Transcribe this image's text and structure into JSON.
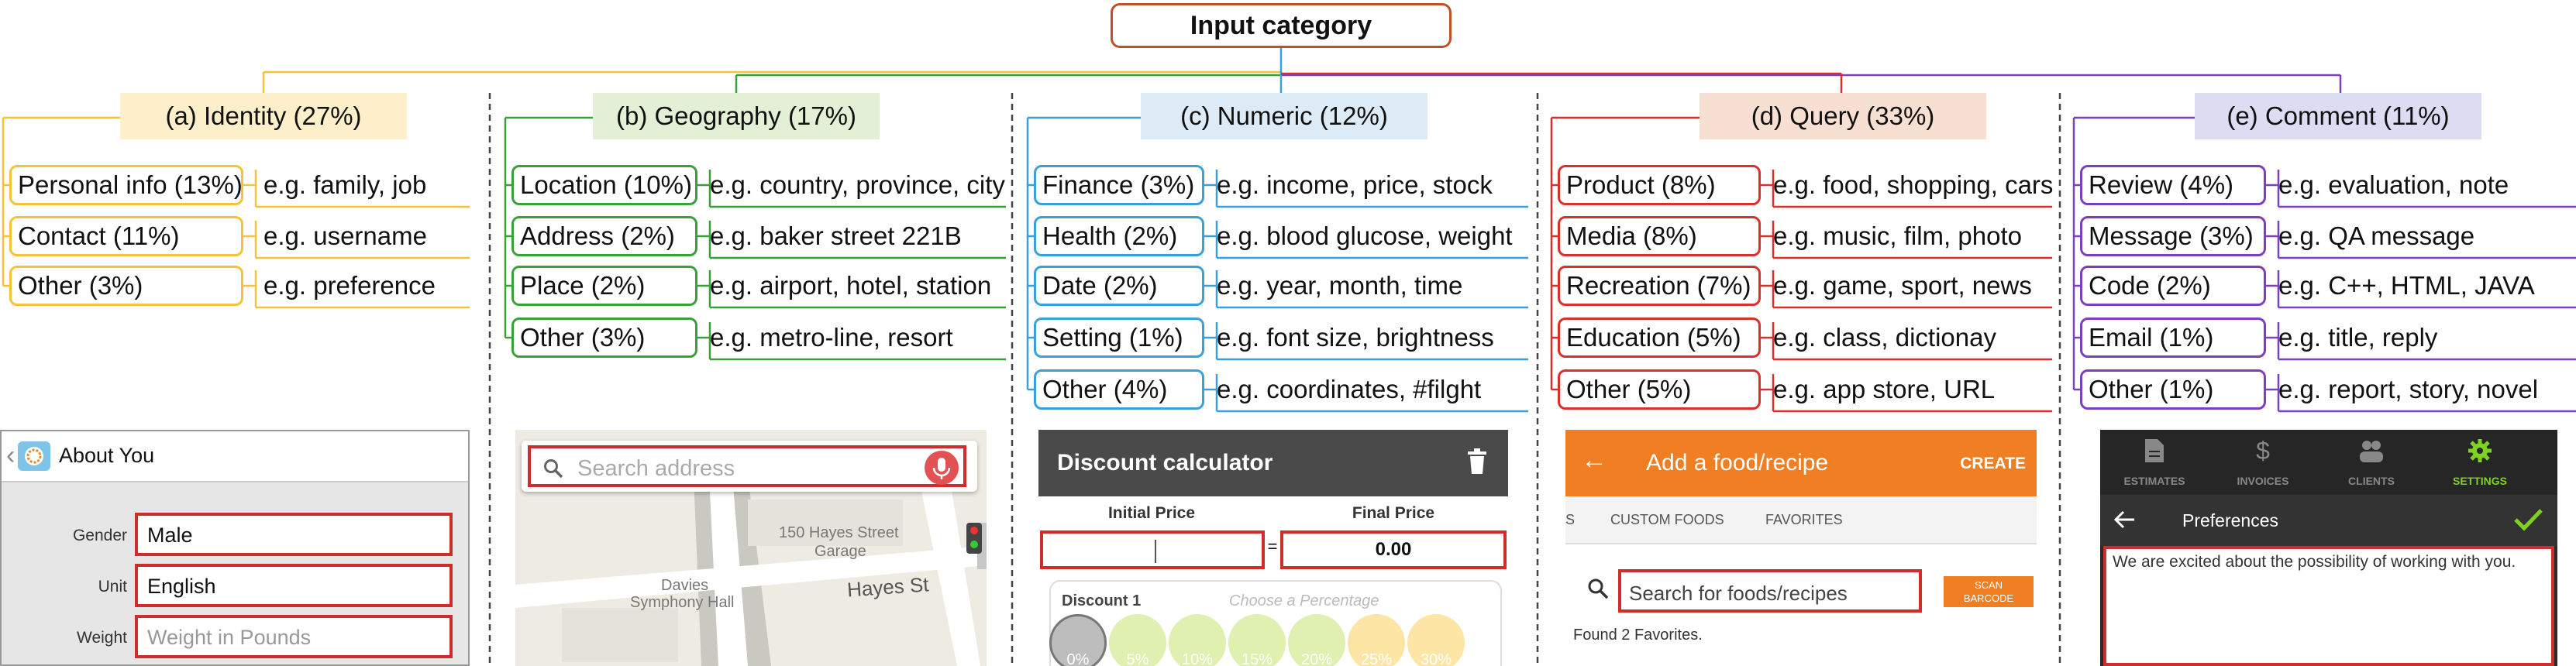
{
  "root_label": "Input category",
  "colors": {
    "identity": "#f5c338",
    "geography": "#3aa13a",
    "numeric": "#3aa0dc",
    "query": "#d8302c",
    "comment": "#7b3fbf",
    "root": "#c0502a",
    "highlight": "#d12c2c"
  },
  "categories": [
    {
      "title": "(a) Identity (27%)",
      "items": [
        {
          "label": "Personal info (13%)",
          "example": "e.g. family, job"
        },
        {
          "label": "Contact (11%)",
          "example": "e.g. username"
        },
        {
          "label": "Other (3%)",
          "example": "e.g. preference"
        }
      ]
    },
    {
      "title": "(b) Geography (17%)",
      "items": [
        {
          "label": "Location (10%)",
          "example": "e.g. country, province, city"
        },
        {
          "label": "Address (2%)",
          "example": "e.g. baker street 221B"
        },
        {
          "label": "Place (2%)",
          "example": "e.g. airport, hotel, station"
        },
        {
          "label": "Other (3%)",
          "example": "e.g. metro-line, resort"
        }
      ]
    },
    {
      "title": "(c) Numeric (12%)",
      "items": [
        {
          "label": "Finance (3%)",
          "example": "e.g. income, price, stock"
        },
        {
          "label": "Health (2%)",
          "example": "e.g. blood glucose, weight"
        },
        {
          "label": "Date (2%)",
          "example": "e.g. year, month, time"
        },
        {
          "label": "Setting (1%)",
          "example": "e.g. font size, brightness"
        },
        {
          "label": "Other (4%)",
          "example": "e.g. coordinates, #filght"
        }
      ]
    },
    {
      "title": "(d) Query (33%)",
      "items": [
        {
          "label": "Product (8%)",
          "example": "e.g. food, shopping, cars"
        },
        {
          "label": "Media (8%)",
          "example": "e.g. music, film, photo"
        },
        {
          "label": "Recreation (7%)",
          "example": "e.g. game, sport, news"
        },
        {
          "label": "Education (5%)",
          "example": "e.g. class, dictionay"
        },
        {
          "label": "Other (5%)",
          "example": "e.g. app store, URL"
        }
      ]
    },
    {
      "title": "(e) Comment (11%)",
      "items": [
        {
          "label": "Review (4%)",
          "example": "e.g. evaluation, note"
        },
        {
          "label": "Message (3%)",
          "example": "e.g. QA message"
        },
        {
          "label": "Code (2%)",
          "example": "e.g. C++, HTML, JAVA"
        },
        {
          "label": "Email (1%)",
          "example": "e.g. title, reply"
        },
        {
          "label": "Other (1%)",
          "example": "e.g. report, story, novel"
        }
      ]
    }
  ],
  "screens": {
    "identity": {
      "back": "‹",
      "title": "About You",
      "fields": [
        {
          "label": "Gender",
          "value": "Male"
        },
        {
          "label": "Unit",
          "value": "English"
        },
        {
          "label": "Weight",
          "placeholder": "Weight in Pounds"
        }
      ]
    },
    "geography": {
      "placeholder": "Search address",
      "map_labels": [
        "150 Hayes Street",
        "Garage",
        "Davies",
        "Symphony Hall",
        "Hayes St"
      ]
    },
    "numeric": {
      "title": "Discount calculator",
      "initial_label": "Initial Price",
      "equals": "=",
      "final_label": "Final Price",
      "final_value": "0.00",
      "discount_label": "Discount 1",
      "discount_hint": "Choose a Percentage",
      "percents": [
        "0%",
        "5%",
        "10%",
        "15%",
        "20%",
        "25%",
        "30%"
      ]
    },
    "query": {
      "back": "←",
      "title": "Add a food/recipe",
      "create": "CREATE",
      "tab_partial": "S",
      "tabs": [
        "CUSTOM FOODS",
        "FAVORITES"
      ],
      "placeholder": "Search for foods/recipes",
      "scan_line1": "SCAN",
      "scan_line2": "BARCODE",
      "found": "Found 2 Favorites."
    },
    "comment": {
      "nav": [
        "ESTIMATES",
        "INVOICES",
        "CLIENTS",
        "SETTINGS"
      ],
      "nav_icons": [
        "document-icon",
        "dollar-icon",
        "people-icon",
        "gear-icon"
      ],
      "header": "Preferences",
      "text": "We are excited about the possibility of working with you."
    }
  }
}
